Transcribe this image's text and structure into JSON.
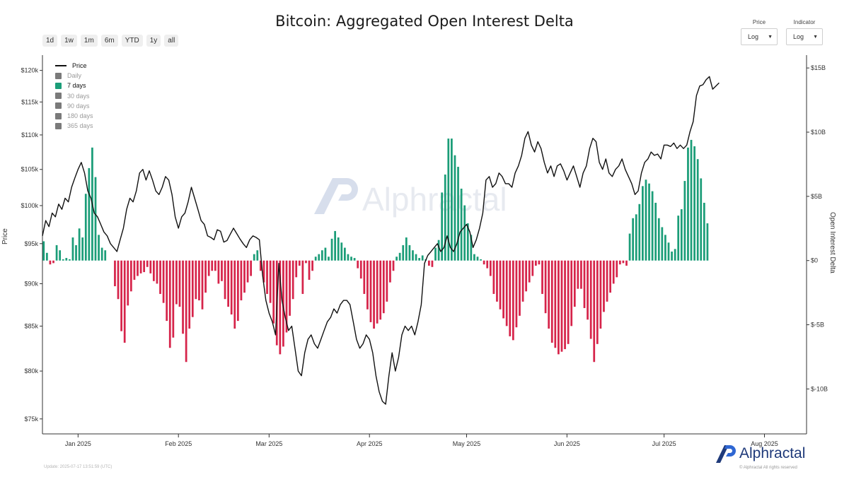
{
  "title": "Bitcoin: Aggregated Open Interest Delta",
  "range_buttons": [
    "1d",
    "1w",
    "1m",
    "6m",
    "YTD",
    "1y",
    "all"
  ],
  "controls": {
    "price": {
      "label": "Price",
      "value": "Log"
    },
    "indicator": {
      "label": "Indicator",
      "value": "Log"
    }
  },
  "legend": [
    {
      "label": "Price",
      "kind": "line",
      "active": true
    },
    {
      "label": "Daily",
      "kind": "box",
      "active": false
    },
    {
      "label": "7 days",
      "kind": "box",
      "active": true
    },
    {
      "label": "30 days",
      "kind": "box",
      "active": false
    },
    {
      "label": "90 days",
      "kind": "box",
      "active": false
    },
    {
      "label": "180 days",
      "kind": "box",
      "active": false
    },
    {
      "label": "365 days",
      "kind": "box",
      "active": false
    }
  ],
  "footer": {
    "update": "Update: 2025-07-17 13:51:59 (UTC)",
    "brand": "Alphractal",
    "copyright": "© Alphractal All rights reserved"
  },
  "watermark": "Alphractal",
  "colors": {
    "positive": "#1b9d78",
    "negative": "#d6244a",
    "price": "#111111",
    "legend_active": "#1b9d78",
    "legend_inactive": "#7a7a7a",
    "brand": "#1f3a7a",
    "brand_accent": "#2f67d3"
  },
  "chart_data": {
    "type": "bar+line",
    "title": "Bitcoin: Aggregated Open Interest Delta",
    "xlabel": "",
    "ylabel_left": "Price",
    "ylabel_right": "Open Interest Delta",
    "x_start": "2024-12-21",
    "x_end": "2025-08-14",
    "x_ticks": [
      {
        "label": "Jan 2025",
        "day": 11
      },
      {
        "label": "Feb 2025",
        "day": 42
      },
      {
        "label": "Mar 2025",
        "day": 70
      },
      {
        "label": "Apr 2025",
        "day": 101
      },
      {
        "label": "May 2025",
        "day": 131
      },
      {
        "label": "Jun 2025",
        "day": 162
      },
      {
        "label": "Jul 2025",
        "day": 192
      },
      {
        "label": "Aug 2025",
        "day": 223
      }
    ],
    "price_axis": {
      "scale": "log",
      "min": 73500,
      "max": 122500,
      "ticks": [
        75000,
        80000,
        85000,
        90000,
        95000,
        100000,
        105000,
        110000,
        115000,
        120000
      ],
      "tick_labels": [
        "$75k",
        "$80k",
        "$85k",
        "$90k",
        "$95k",
        "$100k",
        "$105k",
        "$110k",
        "$115k",
        "$120k"
      ]
    },
    "oi_axis": {
      "min": -13.5,
      "max": 16,
      "unit": "B USD",
      "ticks": [
        -10,
        -5,
        0,
        5,
        10,
        15
      ],
      "tick_labels": [
        "$-10B",
        "$-5B",
        "$0",
        "$5B",
        "$10B",
        "$15B"
      ]
    },
    "series": [
      {
        "name": "Price",
        "type": "line",
        "unit": "USD",
        "points": [
          [
            0,
            96000
          ],
          [
            1,
            98000
          ],
          [
            2,
            97200
          ],
          [
            3,
            99000
          ],
          [
            4,
            98500
          ],
          [
            5,
            100200
          ],
          [
            6,
            99500
          ],
          [
            7,
            101000
          ],
          [
            8,
            100500
          ],
          [
            9,
            102500
          ],
          [
            10,
            103800
          ],
          [
            11,
            105000
          ],
          [
            12,
            106000
          ],
          [
            13,
            104500
          ],
          [
            14,
            102000
          ],
          [
            15,
            101000
          ],
          [
            16,
            99000
          ],
          [
            17,
            98500
          ],
          [
            18,
            97500
          ],
          [
            19,
            96500
          ],
          [
            20,
            96000
          ],
          [
            21,
            95000
          ],
          [
            22,
            94500
          ],
          [
            23,
            94000
          ],
          [
            24,
            95500
          ],
          [
            25,
            97000
          ],
          [
            26,
            99500
          ],
          [
            27,
            101000
          ],
          [
            28,
            100500
          ],
          [
            29,
            102000
          ],
          [
            30,
            104500
          ],
          [
            31,
            105000
          ],
          [
            32,
            103500
          ],
          [
            33,
            104800
          ],
          [
            34,
            103500
          ],
          [
            35,
            102000
          ],
          [
            36,
            101500
          ],
          [
            37,
            102500
          ],
          [
            38,
            104000
          ],
          [
            39,
            103500
          ],
          [
            40,
            101500
          ],
          [
            41,
            98500
          ],
          [
            42,
            97000
          ],
          [
            43,
            98500
          ],
          [
            44,
            99000
          ],
          [
            45,
            100500
          ],
          [
            46,
            102500
          ],
          [
            47,
            101000
          ],
          [
            48,
            99500
          ],
          [
            49,
            98000
          ],
          [
            50,
            97500
          ],
          [
            51,
            96000
          ],
          [
            52,
            95800
          ],
          [
            53,
            95500
          ],
          [
            54,
            96800
          ],
          [
            55,
            96600
          ],
          [
            56,
            95200
          ],
          [
            57,
            95400
          ],
          [
            58,
            96200
          ],
          [
            59,
            97000
          ],
          [
            60,
            96300
          ],
          [
            61,
            95600
          ],
          [
            62,
            95000
          ],
          [
            63,
            94500
          ],
          [
            64,
            95500
          ],
          [
            65,
            96000
          ],
          [
            66,
            95800
          ],
          [
            67,
            95500
          ],
          [
            68,
            91000
          ],
          [
            69,
            88000
          ],
          [
            70,
            86500
          ],
          [
            71,
            85500
          ],
          [
            72,
            84000
          ],
          [
            73,
            92500
          ],
          [
            74,
            88000
          ],
          [
            75,
            86000
          ],
          [
            76,
            84500
          ],
          [
            77,
            85000
          ],
          [
            78,
            82500
          ],
          [
            79,
            80000
          ],
          [
            80,
            79500
          ],
          [
            81,
            82000
          ],
          [
            82,
            83500
          ],
          [
            83,
            84000
          ],
          [
            84,
            83000
          ],
          [
            85,
            82500
          ],
          [
            86,
            83500
          ],
          [
            87,
            84500
          ],
          [
            88,
            85500
          ],
          [
            89,
            86000
          ],
          [
            90,
            87000
          ],
          [
            91,
            86500
          ],
          [
            92,
            87500
          ],
          [
            93,
            88000
          ],
          [
            94,
            88000
          ],
          [
            95,
            87500
          ],
          [
            96,
            85500
          ],
          [
            97,
            83500
          ],
          [
            98,
            82500
          ],
          [
            99,
            83000
          ],
          [
            100,
            84000
          ],
          [
            101,
            83500
          ],
          [
            102,
            82000
          ],
          [
            103,
            79500
          ],
          [
            104,
            77800
          ],
          [
            105,
            76800
          ],
          [
            106,
            76500
          ],
          [
            107,
            79500
          ],
          [
            108,
            82000
          ],
          [
            109,
            80000
          ],
          [
            110,
            81500
          ],
          [
            111,
            84000
          ],
          [
            112,
            85000
          ],
          [
            113,
            84500
          ],
          [
            114,
            85000
          ],
          [
            115,
            84000
          ],
          [
            116,
            85500
          ],
          [
            117,
            87500
          ],
          [
            118,
            92500
          ],
          [
            119,
            93500
          ],
          [
            120,
            94000
          ],
          [
            121,
            94500
          ],
          [
            122,
            95000
          ],
          [
            123,
            94000
          ],
          [
            124,
            94500
          ],
          [
            125,
            96000
          ],
          [
            126,
            94500
          ],
          [
            127,
            94000
          ],
          [
            128,
            95000
          ],
          [
            129,
            96500
          ],
          [
            130,
            97000
          ],
          [
            131,
            97500
          ],
          [
            132,
            96500
          ],
          [
            133,
            94500
          ],
          [
            134,
            95500
          ],
          [
            135,
            97000
          ],
          [
            136,
            99000
          ],
          [
            137,
            103500
          ],
          [
            138,
            104000
          ],
          [
            139,
            102500
          ],
          [
            140,
            103000
          ],
          [
            141,
            104500
          ],
          [
            142,
            104000
          ],
          [
            143,
            103000
          ],
          [
            144,
            103000
          ],
          [
            145,
            102500
          ],
          [
            146,
            104500
          ],
          [
            147,
            105500
          ],
          [
            148,
            107000
          ],
          [
            149,
            109500
          ],
          [
            150,
            110500
          ],
          [
            151,
            108500
          ],
          [
            152,
            107500
          ],
          [
            153,
            109000
          ],
          [
            154,
            108000
          ],
          [
            155,
            106000
          ],
          [
            156,
            104500
          ],
          [
            157,
            105500
          ],
          [
            158,
            104000
          ],
          [
            159,
            105500
          ],
          [
            160,
            105800
          ],
          [
            161,
            104800
          ],
          [
            162,
            103500
          ],
          [
            163,
            104500
          ],
          [
            164,
            105500
          ],
          [
            165,
            104000
          ],
          [
            166,
            102500
          ],
          [
            167,
            104500
          ],
          [
            168,
            105500
          ],
          [
            169,
            108000
          ],
          [
            170,
            109500
          ],
          [
            171,
            109000
          ],
          [
            172,
            106000
          ],
          [
            173,
            105000
          ],
          [
            174,
            106500
          ],
          [
            175,
            104500
          ],
          [
            176,
            104000
          ],
          [
            177,
            105000
          ],
          [
            178,
            105500
          ],
          [
            179,
            106500
          ],
          [
            180,
            105000
          ],
          [
            181,
            104000
          ],
          [
            182,
            103000
          ],
          [
            183,
            101500
          ],
          [
            184,
            102000
          ],
          [
            185,
            104500
          ],
          [
            186,
            106000
          ],
          [
            187,
            106500
          ],
          [
            188,
            107500
          ],
          [
            189,
            107000
          ],
          [
            190,
            107200
          ],
          [
            191,
            106500
          ],
          [
            192,
            108500
          ],
          [
            193,
            108500
          ],
          [
            194,
            108300
          ],
          [
            195,
            108800
          ],
          [
            196,
            108000
          ],
          [
            197,
            108500
          ],
          [
            198,
            108000
          ],
          [
            199,
            108500
          ],
          [
            200,
            110500
          ],
          [
            201,
            112000
          ],
          [
            202,
            116000
          ],
          [
            203,
            117500
          ],
          [
            204,
            117700
          ],
          [
            205,
            118500
          ],
          [
            206,
            119000
          ],
          [
            207,
            117000
          ],
          [
            208,
            117500
          ],
          [
            209,
            118000
          ]
        ]
      },
      {
        "name": "7 days",
        "type": "bar",
        "unit": "B USD",
        "values": [
          1.5,
          0.6,
          -0.3,
          -0.2,
          1.2,
          0.8,
          0.1,
          0.2,
          0.1,
          1.8,
          1.2,
          2.5,
          1.8,
          5.2,
          7.2,
          8.8,
          6.5,
          2.0,
          1.0,
          0.8,
          0,
          0,
          -2.0,
          -3.0,
          -5.5,
          -6.4,
          -3.5,
          -2.4,
          -1.5,
          -1.2,
          -1.0,
          -0.9,
          -0.5,
          -1.0,
          -1.6,
          -1.8,
          -2.6,
          -3.3,
          -4.7,
          -6.8,
          -6.0,
          -3.4,
          -3.6,
          -5.7,
          -7.9,
          -5.3,
          -4.4,
          -3.0,
          -3.1,
          -3.8,
          -2.5,
          -1.2,
          -0.8,
          -0.8,
          -1.8,
          -1.6,
          -3.0,
          -3.6,
          -4.2,
          -5.3,
          -4.7,
          -3.1,
          -2.5,
          -1.7,
          -1.2,
          0.5,
          0.8,
          -0.8,
          -1.7,
          -2.6,
          -3.3,
          -4.9,
          -6.6,
          -7.3,
          -6.7,
          -5.6,
          -4.3,
          -3.0,
          -1.3,
          -0.4,
          -2.6,
          -0.2,
          -1.5,
          -0.8,
          0.3,
          0.5,
          0.8,
          1.0,
          0.3,
          1.7,
          2.3,
          1.8,
          1.4,
          1.0,
          0.5,
          0.3,
          0.2,
          -0.6,
          -1.4,
          -2.6,
          -3.8,
          -4.8,
          -5.3,
          -4.9,
          -4.6,
          -4.1,
          -3.2,
          -1.7,
          -0.8,
          0.3,
          0.6,
          1.2,
          1.8,
          1.2,
          0.8,
          0.5,
          0.2,
          0.4,
          0.1,
          -0.4,
          -0.5,
          1.0,
          1.6,
          5.3,
          6.7,
          9.5,
          9.5,
          8.2,
          7.3,
          5.6,
          4.3,
          2.9,
          2.0,
          0.5,
          0.3,
          0.1,
          -0.3,
          -0.6,
          -1.2,
          -2.6,
          -3.2,
          -3.8,
          -4.5,
          -5.1,
          -5.9,
          -6.2,
          -5.2,
          -4.3,
          -3.2,
          -2.4,
          -1.7,
          -1.2,
          -0.4,
          -0.3,
          -2.6,
          -4.1,
          -5.3,
          -6.4,
          -6.8,
          -7.3,
          -7.1,
          -6.9,
          -6.5,
          -5.1,
          -3.6,
          -2.2,
          -2.2,
          -3.7,
          -4.6,
          -6.1,
          -7.9,
          -6.5,
          -5.3,
          -4.0,
          -3.2,
          -2.5,
          -1.8,
          -1.3,
          -0.3,
          -0.2,
          -0.4,
          2.1,
          3.3,
          3.6,
          4.4,
          5.8,
          6.3,
          6.0,
          5.4,
          4.5,
          3.3,
          2.6,
          2.0,
          1.4,
          0.7,
          0.9,
          3.5,
          4.0,
          6.2,
          8.8,
          9.4,
          8.9,
          7.9,
          6.4,
          4.5,
          2.9
        ]
      }
    ]
  }
}
